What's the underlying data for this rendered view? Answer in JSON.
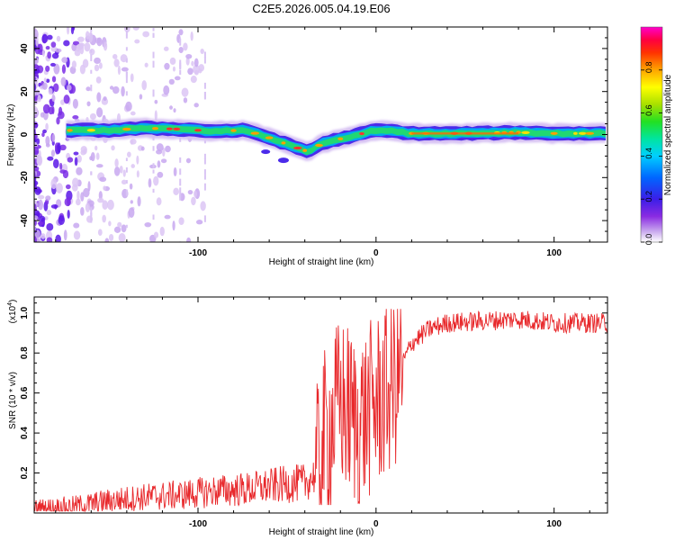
{
  "title": "C2E5.2026.005.04.19.E06",
  "chart_data": [
    {
      "type": "heatmap",
      "name": "spectrogram",
      "xlabel": "Height of straight line (km)",
      "ylabel": "Frequency (Hz)",
      "xlim": [
        -192,
        130
      ],
      "ylim": [
        -50,
        50
      ],
      "x_ticks": [
        -100,
        0,
        100
      ],
      "y_ticks": [
        -40,
        -20,
        0,
        20,
        40
      ],
      "colorbar": {
        "label": "Normalized spectral amplitude",
        "range": [
          0,
          1
        ],
        "ticks": [
          "0.0",
          "0.2",
          "0.4",
          "0.6",
          "0.8"
        ],
        "colors": [
          "#ffffff",
          "#c9a9ee",
          "#8a2be2",
          "#3b1ee8",
          "#0066ff",
          "#00cfff",
          "#00e5a0",
          "#22e022",
          "#a8e000",
          "#ffff00",
          "#ffa500",
          "#ff3300",
          "#ff0040",
          "#ff00cc"
        ]
      },
      "ridge": [
        {
          "x": -190,
          "f": 1.5
        },
        {
          "x": -170,
          "f": 2.0
        },
        {
          "x": -150,
          "f": 2.0
        },
        {
          "x": -130,
          "f": 3.0
        },
        {
          "x": -110,
          "f": 2.5
        },
        {
          "x": -90,
          "f": 1.5
        },
        {
          "x": -75,
          "f": 2.0
        },
        {
          "x": -65,
          "f": 0.0
        },
        {
          "x": -55,
          "f": -3.0
        },
        {
          "x": -45,
          "f": -6.0
        },
        {
          "x": -38,
          "f": -8.0
        },
        {
          "x": -30,
          "f": -4.0
        },
        {
          "x": -20,
          "f": -2.0
        },
        {
          "x": -10,
          "f": 0.0
        },
        {
          "x": 0,
          "f": 2.0
        },
        {
          "x": 10,
          "f": 1.5
        },
        {
          "x": 20,
          "f": 0.5
        },
        {
          "x": 50,
          "f": 0.5
        },
        {
          "x": 80,
          "f": 1.0
        },
        {
          "x": 100,
          "f": 0.5
        },
        {
          "x": 130,
          "f": 0.5
        }
      ]
    },
    {
      "type": "line",
      "name": "snr",
      "xlabel": "Height of straight line (km)",
      "ylabel": "SNR (10 * v/v)",
      "multiplier": "(x10",
      "multiplier_exp": "4",
      "multiplier_close": ")",
      "xlim": [
        -192,
        130
      ],
      "ylim": [
        0,
        1.08
      ],
      "x_ticks": [
        -100,
        0,
        100
      ],
      "y_ticks": [
        "0.2",
        "0.4",
        "0.6",
        "0.8",
        "1.0"
      ],
      "color": "#e8282b",
      "envelope": [
        {
          "x": -192,
          "y": 0.02
        },
        {
          "x": -170,
          "y": 0.03
        },
        {
          "x": -150,
          "y": 0.06
        },
        {
          "x": -130,
          "y": 0.08
        },
        {
          "x": -110,
          "y": 0.09
        },
        {
          "x": -90,
          "y": 0.11
        },
        {
          "x": -70,
          "y": 0.12
        },
        {
          "x": -55,
          "y": 0.14
        },
        {
          "x": -40,
          "y": 0.15
        },
        {
          "x": -33,
          "y": 0.2
        },
        {
          "x": -30,
          "y": 0.35
        },
        {
          "x": -25,
          "y": 0.45
        },
        {
          "x": -20,
          "y": 0.55
        },
        {
          "x": -15,
          "y": 0.5
        },
        {
          "x": -10,
          "y": 0.45
        },
        {
          "x": -5,
          "y": 0.5
        },
        {
          "x": 0,
          "y": 0.55
        },
        {
          "x": 5,
          "y": 0.6
        },
        {
          "x": 10,
          "y": 0.65
        },
        {
          "x": 15,
          "y": 0.75
        },
        {
          "x": 20,
          "y": 0.85
        },
        {
          "x": 30,
          "y": 0.92
        },
        {
          "x": 40,
          "y": 0.95
        },
        {
          "x": 60,
          "y": 0.96
        },
        {
          "x": 80,
          "y": 0.97
        },
        {
          "x": 100,
          "y": 0.95
        },
        {
          "x": 130,
          "y": 0.95
        }
      ]
    }
  ]
}
